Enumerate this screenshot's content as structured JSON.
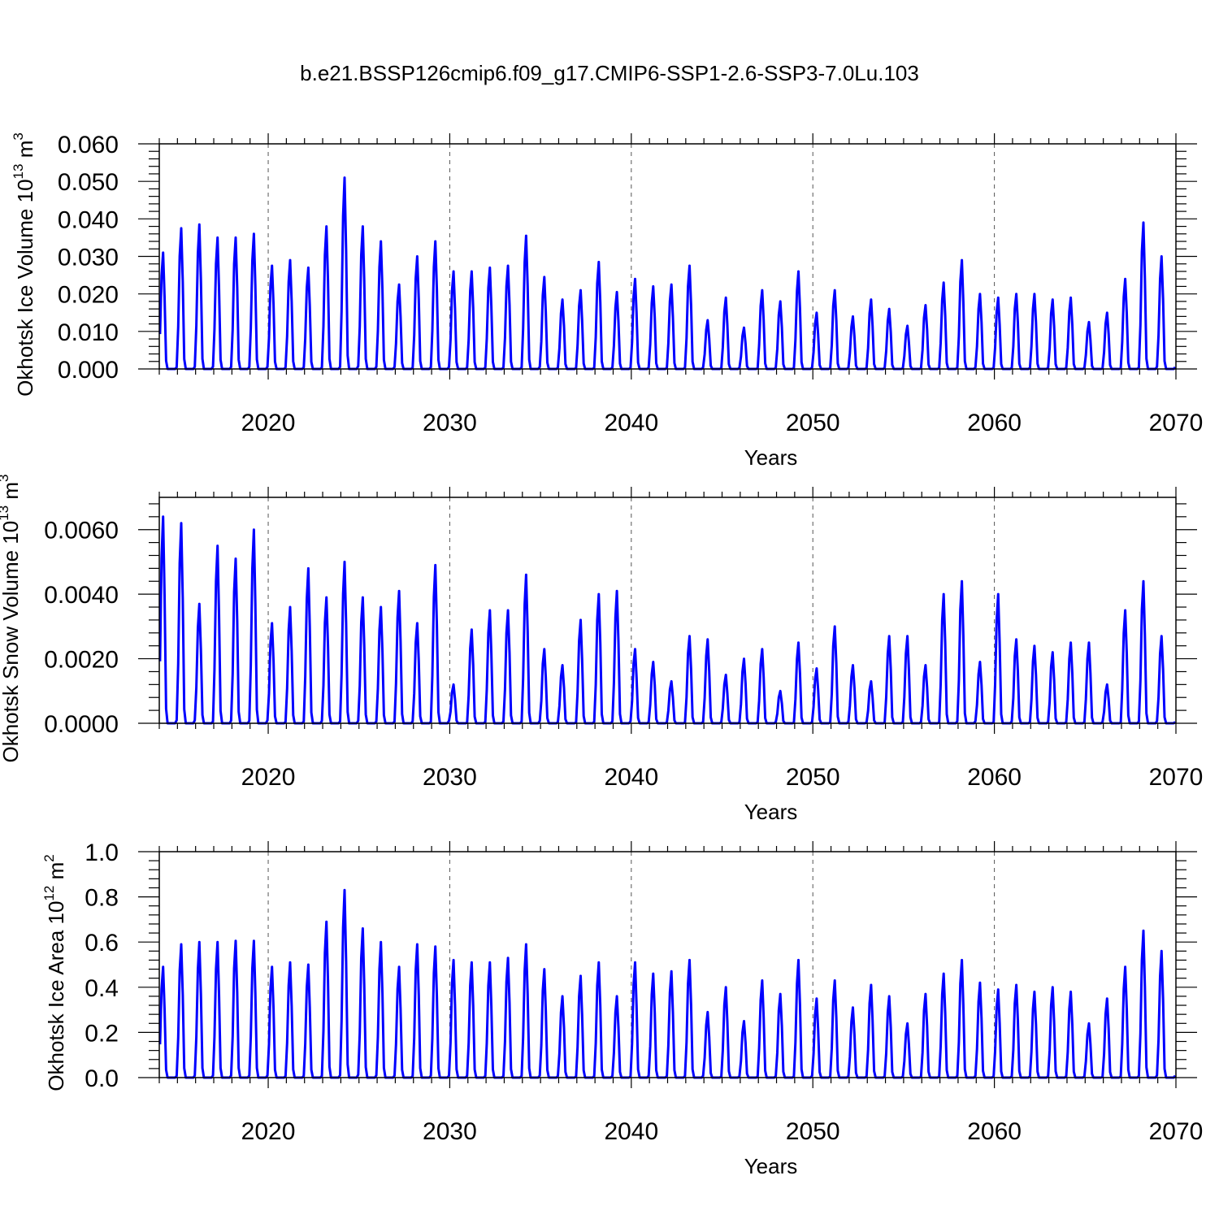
{
  "title": "b.e21.BSSP126cmip6.f09_g17.CMIP6-SSP1-2.6-SSP3-7.0Lu.103",
  "colors": {
    "series": "#0000ff",
    "axes": "#000000",
    "grid": "#555555"
  },
  "chart_data": [
    {
      "type": "line",
      "ylabel_main": "Okhotsk Ice Volume 10",
      "ylabel_exp": "13",
      "ylabel_unit": "m",
      "ylabel_unit_exp": "3",
      "xlabel": "Years",
      "xlim": [
        2014,
        2070
      ],
      "ylim": [
        0,
        0.06
      ],
      "y_ticks": [
        0.0,
        0.01,
        0.02,
        0.03,
        0.04,
        0.05,
        0.06
      ],
      "y_tick_labels": [
        "0.000",
        "0.010",
        "0.020",
        "0.030",
        "0.040",
        "0.050",
        "0.060"
      ],
      "x_ticks": [
        2020,
        2030,
        2040,
        2050,
        2060,
        2070
      ],
      "x_tick_labels": [
        "2020",
        "2030",
        "2040",
        "2050",
        "2060",
        "2070"
      ],
      "grid": "vertical dashed at major x ticks",
      "annual_peaks": [
        0.031,
        0.0375,
        0.0385,
        0.035,
        0.035,
        0.036,
        0.0275,
        0.029,
        0.027,
        0.038,
        0.051,
        0.038,
        0.034,
        0.0225,
        0.03,
        0.034,
        0.026,
        0.026,
        0.027,
        0.0275,
        0.0355,
        0.0245,
        0.0185,
        0.021,
        0.0285,
        0.0205,
        0.024,
        0.022,
        0.0225,
        0.0275,
        0.013,
        0.019,
        0.011,
        0.021,
        0.018,
        0.026,
        0.015,
        0.021,
        0.014,
        0.0185,
        0.016,
        0.0115,
        0.017,
        0.023,
        0.029,
        0.02,
        0.019,
        0.02,
        0.02,
        0.0185,
        0.019,
        0.0125,
        0.015,
        0.024,
        0.039,
        0.03
      ]
    },
    {
      "type": "line",
      "ylabel_main": "Okhotsk Snow Volume 10",
      "ylabel_exp": "13",
      "ylabel_unit": "m",
      "ylabel_unit_exp": "3",
      "xlabel": "Years",
      "xlim": [
        2014,
        2070
      ],
      "ylim": [
        0,
        0.007
      ],
      "y_ticks": [
        0.0,
        0.002,
        0.004,
        0.006
      ],
      "y_tick_labels": [
        "0.0000",
        "0.0020",
        "0.0040",
        "0.0060"
      ],
      "x_ticks": [
        2020,
        2030,
        2040,
        2050,
        2060,
        2070
      ],
      "x_tick_labels": [
        "2020",
        "2030",
        "2040",
        "2050",
        "2060",
        "2070"
      ],
      "grid": "vertical dashed at major x ticks",
      "annual_peaks": [
        0.0064,
        0.0062,
        0.0037,
        0.0055,
        0.0051,
        0.006,
        0.0031,
        0.0036,
        0.0048,
        0.0039,
        0.005,
        0.0039,
        0.0036,
        0.0041,
        0.0031,
        0.0049,
        0.0012,
        0.0029,
        0.0035,
        0.0035,
        0.0046,
        0.0023,
        0.0018,
        0.0032,
        0.004,
        0.0041,
        0.0023,
        0.0019,
        0.0013,
        0.0027,
        0.0026,
        0.0015,
        0.002,
        0.0023,
        0.001,
        0.0025,
        0.0017,
        0.003,
        0.0018,
        0.0013,
        0.0027,
        0.0027,
        0.0018,
        0.004,
        0.0044,
        0.0019,
        0.004,
        0.0026,
        0.0024,
        0.0022,
        0.0025,
        0.0025,
        0.0012,
        0.0035,
        0.0044,
        0.0027
      ]
    },
    {
      "type": "line",
      "ylabel_main": "Okhotsk Ice Area 10",
      "ylabel_exp": "12",
      "ylabel_unit": "m",
      "ylabel_unit_exp": "2",
      "xlabel": "Years",
      "xlim": [
        2014,
        2070
      ],
      "ylim": [
        0,
        1.0
      ],
      "y_ticks": [
        0.0,
        0.2,
        0.4,
        0.6,
        0.8,
        1.0
      ],
      "y_tick_labels": [
        "0.0",
        "0.2",
        "0.4",
        "0.6",
        "0.8",
        "1.0"
      ],
      "x_ticks": [
        2020,
        2030,
        2040,
        2050,
        2060,
        2070
      ],
      "x_tick_labels": [
        "2020",
        "2030",
        "2040",
        "2050",
        "2060",
        "2070"
      ],
      "grid": "vertical dashed at major x ticks",
      "annual_peaks": [
        0.49,
        0.59,
        0.6,
        0.6,
        0.605,
        0.605,
        0.49,
        0.51,
        0.5,
        0.69,
        0.83,
        0.66,
        0.6,
        0.49,
        0.59,
        0.58,
        0.52,
        0.51,
        0.51,
        0.53,
        0.59,
        0.48,
        0.36,
        0.45,
        0.51,
        0.36,
        0.51,
        0.46,
        0.47,
        0.52,
        0.29,
        0.4,
        0.25,
        0.43,
        0.37,
        0.52,
        0.35,
        0.43,
        0.31,
        0.41,
        0.36,
        0.24,
        0.37,
        0.46,
        0.52,
        0.42,
        0.39,
        0.41,
        0.38,
        0.4,
        0.38,
        0.24,
        0.35,
        0.49,
        0.65,
        0.56
      ]
    }
  ]
}
